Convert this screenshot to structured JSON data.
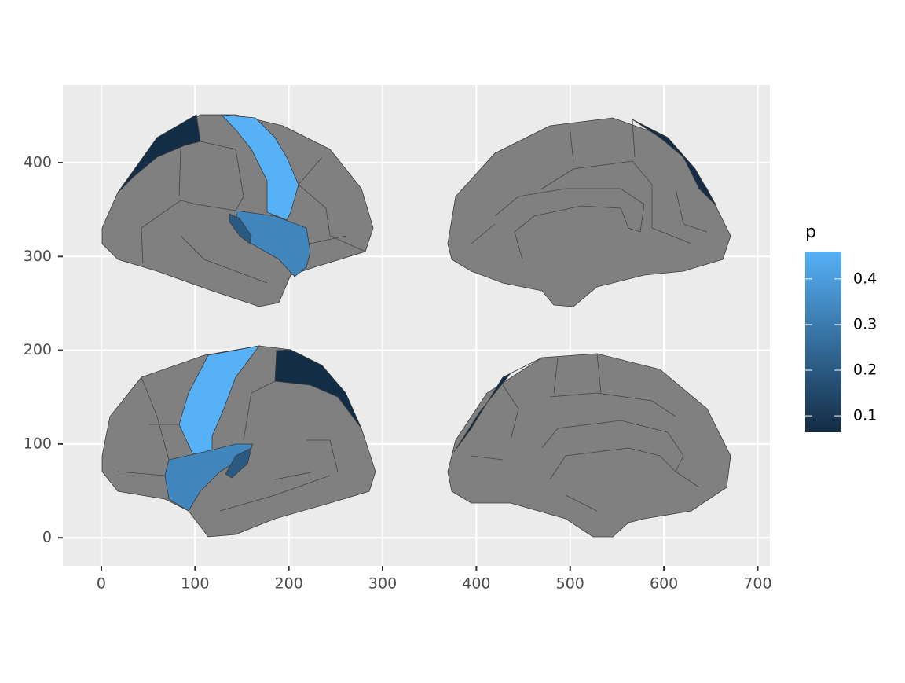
{
  "chart_data": {
    "type": "choropleth",
    "xlim": [
      -41,
      713
    ],
    "ylim": [
      -30,
      483
    ],
    "xticks": [
      0,
      100,
      200,
      300,
      400,
      500,
      600,
      700
    ],
    "yticks": [
      0,
      100,
      200,
      300,
      400
    ],
    "grid": true,
    "values": [
      0.46,
      0.33,
      0.2,
      0.07
    ],
    "na_color": "#808080",
    "legend": {
      "title": "p",
      "ticks": [
        0.1,
        0.2,
        0.3,
        0.4
      ],
      "limits": [
        0.064,
        0.46
      ],
      "low_color": "#132B43",
      "high_color": "#56B1F7"
    }
  }
}
